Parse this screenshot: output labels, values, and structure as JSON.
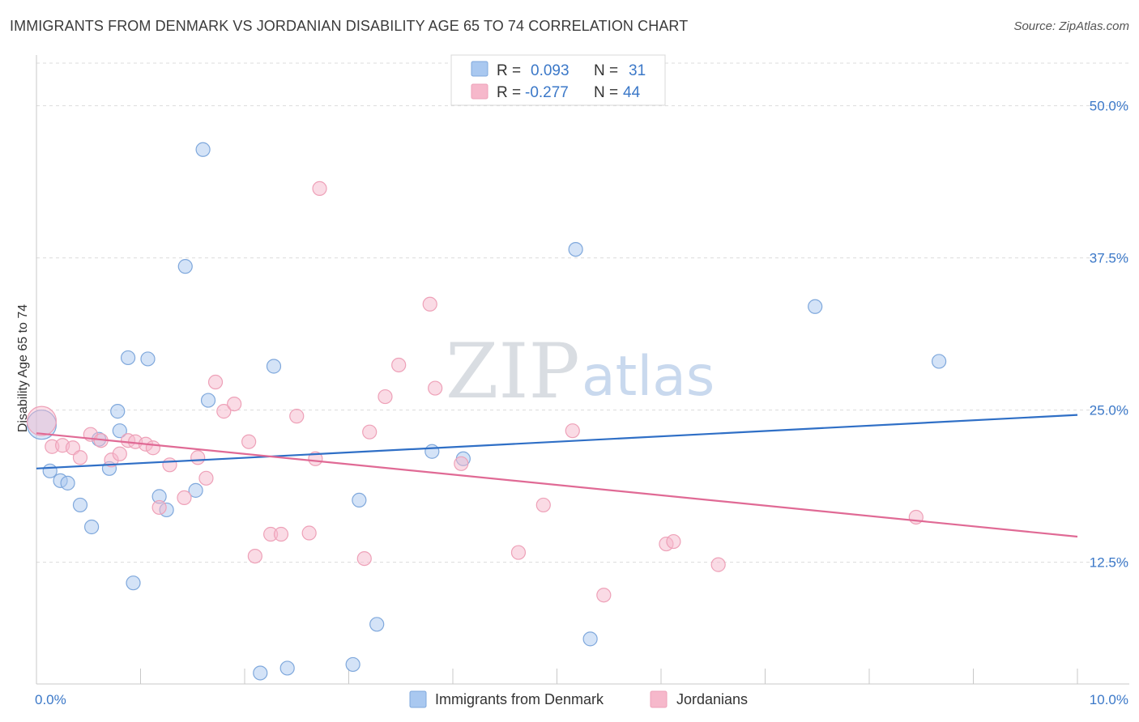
{
  "header": {
    "title": "IMMIGRANTS FROM DENMARK VS JORDANIAN DISABILITY AGE 65 TO 74 CORRELATION CHART",
    "source": "Source: ZipAtlas.com"
  },
  "watermark": {
    "zip": "ZIP",
    "atlas": "atlas"
  },
  "legend_box": {
    "rows": [
      {
        "r_label": "R =",
        "r_value": "0.093",
        "n_label": "N =",
        "n_value": "31",
        "color": "#a9c8f0"
      },
      {
        "r_label": "R =",
        "r_value": "-0.277",
        "n_label": "N =",
        "n_value": "44",
        "color": "#f6b8cb"
      }
    ]
  },
  "bottom_legend": {
    "items": [
      {
        "label": "Immigrants from Denmark",
        "color": "#a9c8f0"
      },
      {
        "label": "Jordanians",
        "color": "#f6b8cb"
      }
    ]
  },
  "chart_data": {
    "type": "scatter",
    "title": "IMMIGRANTS FROM DENMARK VS JORDANIAN DISABILITY AGE 65 TO 74 CORRELATION CHART",
    "xlabel": "",
    "ylabel": "Disability Age 65 to 74",
    "xlim": [
      0,
      10
    ],
    "ylim": [
      2.5,
      53.5
    ],
    "x_tick_labels": [
      "0.0%",
      "10.0%"
    ],
    "y_ticks": [
      12.5,
      25.0,
      37.5,
      50.0
    ],
    "y_tick_labels": [
      "12.5%",
      "25.0%",
      "37.5%",
      "50.0%"
    ],
    "grid": true,
    "legend_position": "top-center",
    "series": [
      {
        "name": "Immigrants from Denmark",
        "color": "#a9c8f0",
        "line_color": "#2f6fc6",
        "trend": [
          [
            0,
            20.2
          ],
          [
            10,
            24.6
          ]
        ],
        "points": [
          [
            0.05,
            23.8
          ],
          [
            0.13,
            20.0
          ],
          [
            0.23,
            19.2
          ],
          [
            0.3,
            19.0
          ],
          [
            0.42,
            17.2
          ],
          [
            0.53,
            15.4
          ],
          [
            0.6,
            22.6
          ],
          [
            0.7,
            20.2
          ],
          [
            0.78,
            24.9
          ],
          [
            0.8,
            23.3
          ],
          [
            0.88,
            29.3
          ],
          [
            0.93,
            10.8
          ],
          [
            1.07,
            29.2
          ],
          [
            1.18,
            17.9
          ],
          [
            1.25,
            16.8
          ],
          [
            1.43,
            36.8
          ],
          [
            1.53,
            18.4
          ],
          [
            1.65,
            25.8
          ],
          [
            1.6,
            46.4
          ],
          [
            2.15,
            3.4
          ],
          [
            2.28,
            28.6
          ],
          [
            2.41,
            3.8
          ],
          [
            3.04,
            4.1
          ],
          [
            3.1,
            17.6
          ],
          [
            3.27,
            7.4
          ],
          [
            3.8,
            21.6
          ],
          [
            4.1,
            21.0
          ],
          [
            5.18,
            38.2
          ],
          [
            5.32,
            6.2
          ],
          [
            7.48,
            33.5
          ],
          [
            8.67,
            29.0
          ]
        ]
      },
      {
        "name": "Jordanians",
        "color": "#f6b8cb",
        "line_color": "#e06a95",
        "trend": [
          [
            0,
            23.1
          ],
          [
            10,
            14.6
          ]
        ],
        "points": [
          [
            0.05,
            24.1
          ],
          [
            0.15,
            22.0
          ],
          [
            0.25,
            22.1
          ],
          [
            0.35,
            21.9
          ],
          [
            0.42,
            21.1
          ],
          [
            0.52,
            23.0
          ],
          [
            0.62,
            22.5
          ],
          [
            0.72,
            20.9
          ],
          [
            0.8,
            21.4
          ],
          [
            0.88,
            22.5
          ],
          [
            0.95,
            22.4
          ],
          [
            1.05,
            22.2
          ],
          [
            1.12,
            21.9
          ],
          [
            1.18,
            17.0
          ],
          [
            1.28,
            20.5
          ],
          [
            1.42,
            17.8
          ],
          [
            1.55,
            21.1
          ],
          [
            1.63,
            19.4
          ],
          [
            1.72,
            27.3
          ],
          [
            1.8,
            24.9
          ],
          [
            1.9,
            25.5
          ],
          [
            2.04,
            22.4
          ],
          [
            2.1,
            13.0
          ],
          [
            2.25,
            14.8
          ],
          [
            2.35,
            14.8
          ],
          [
            2.5,
            24.5
          ],
          [
            2.62,
            14.9
          ],
          [
            2.68,
            21.0
          ],
          [
            2.72,
            43.2
          ],
          [
            3.15,
            12.8
          ],
          [
            3.2,
            23.2
          ],
          [
            3.35,
            26.1
          ],
          [
            3.48,
            28.7
          ],
          [
            3.78,
            33.7
          ],
          [
            3.83,
            26.8
          ],
          [
            4.08,
            20.6
          ],
          [
            4.63,
            13.3
          ],
          [
            4.87,
            17.2
          ],
          [
            5.15,
            23.3
          ],
          [
            5.45,
            9.8
          ],
          [
            6.05,
            14.0
          ],
          [
            6.12,
            14.2
          ],
          [
            6.55,
            12.3
          ],
          [
            8.45,
            16.2
          ]
        ]
      }
    ]
  }
}
